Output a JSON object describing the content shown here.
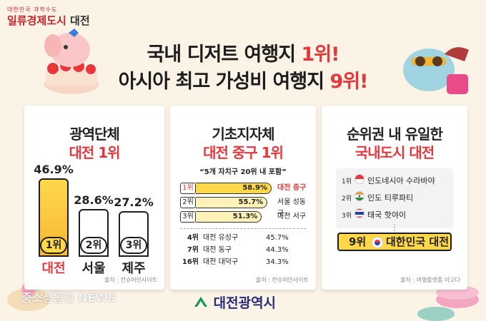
{
  "brand": {
    "tagline": "대한민국 과학수도",
    "name_main": "일류경제도시",
    "name_city": "대전"
  },
  "headline": {
    "line1_prefix": "국내 디저트 여행지",
    "line1_rank": "1위!",
    "line2_prefix": "아시아 최고 가성비 여행지",
    "line2_rank": "9위!"
  },
  "card1": {
    "title_line1": "광역단체",
    "title_line2": "대전 1위",
    "source": "출처 : 컨슈머인사이트",
    "chart_data": {
      "type": "bar",
      "categories": [
        "대전",
        "서울",
        "제주"
      ],
      "values": [
        46.9,
        28.6,
        27.2
      ],
      "value_labels": [
        "46.9%",
        "28.6%",
        "27.2%"
      ],
      "rank_labels": [
        "1위",
        "2위",
        "3위"
      ]
    }
  },
  "card2": {
    "title_line1": "기초지자체",
    "title_line2": "대전 중구 1위",
    "subtitle": "“5개 자치구 20위 내 포함”",
    "source": "출처 : 컨슈머인사이트",
    "top3": [
      {
        "rank": "1위",
        "value": 58.9,
        "value_label": "58.9%",
        "name": "대전 중구"
      },
      {
        "rank": "2위",
        "value": 55.7,
        "value_label": "55.7%",
        "name": "서울 성동구"
      },
      {
        "rank": "3위",
        "value": 51.3,
        "value_label": "51.3%",
        "name": "대전 서구"
      }
    ],
    "others": [
      {
        "rank": "4위",
        "name": "대전 유성구",
        "value": "45.7%"
      },
      {
        "rank": "7위",
        "name": "대전 동구",
        "value": "44.3%"
      },
      {
        "rank": "16위",
        "name": "대전 대덕구",
        "value": "34.3%"
      }
    ]
  },
  "card3": {
    "title_line1": "순위권 내 유일한",
    "title_line2": "국내도시 대전",
    "items": [
      {
        "rank": "1위",
        "flag": "indonesia-flag",
        "name": "인도네시아 수라바야"
      },
      {
        "rank": "2위",
        "flag": "india-flag",
        "name": "인도 티루파티"
      },
      {
        "rank": "3위",
        "flag": "thailand-flag",
        "name": "태국 핫야이"
      }
    ],
    "dots": "⋮",
    "highlight": {
      "rank": "9위",
      "flag": "korea-flag",
      "name": "대한민국 대전"
    },
    "source": "출처 : 여행플랫폼 아고다"
  },
  "footer": {
    "city_logo": "대전광역시",
    "news_watermark": "중소상공인 NEWS"
  },
  "colors": {
    "accent_red": "#e8373c",
    "gold": "#ffd84a",
    "background": "#fbf3e6"
  }
}
